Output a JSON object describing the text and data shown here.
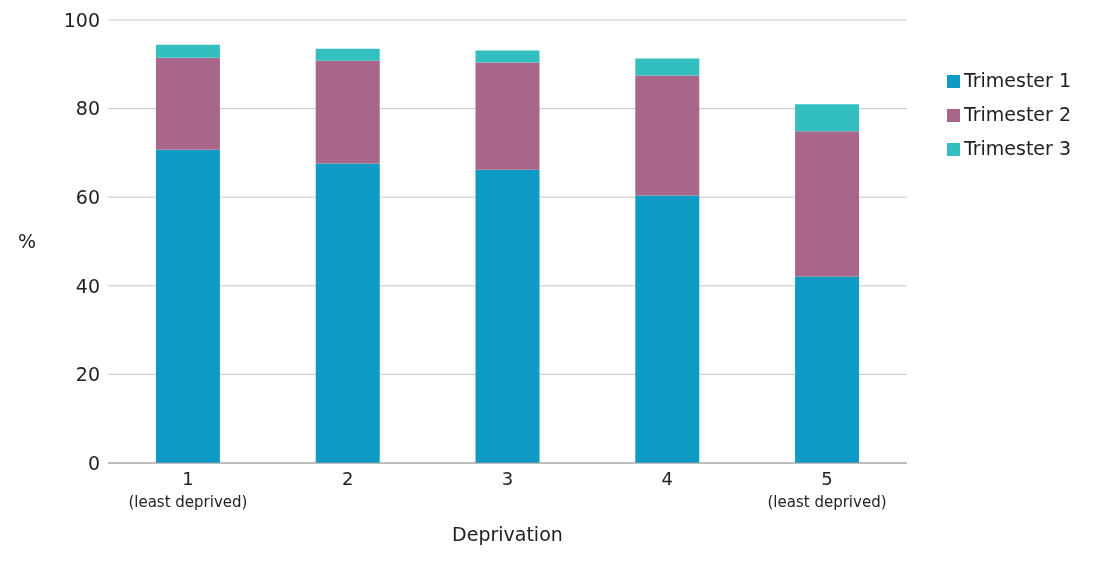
{
  "chart_data": {
    "type": "bar",
    "stacked": true,
    "xlabel": "Deprivation",
    "ylabel": "%",
    "categories": [
      "1\n(least deprived)",
      "2",
      "3",
      "4",
      "5\n(least deprived)"
    ],
    "series": [
      {
        "name": "Trimester 1",
        "color": "#0d9bc6",
        "values": [
          70.7,
          67.6,
          66.2,
          60.4,
          42.1
        ]
      },
      {
        "name": "Trimester 2",
        "color": "#a8668a",
        "values": [
          20.8,
          23.2,
          24.2,
          27.1,
          32.8
        ]
      },
      {
        "name": "Trimester 3",
        "color": "#33bfc0",
        "values": [
          2.9,
          2.7,
          2.7,
          3.8,
          6.1
        ]
      }
    ],
    "ylim": [
      0,
      100
    ],
    "yticks": [
      0,
      20,
      40,
      60,
      80,
      100
    ],
    "grid": "y",
    "legend": "right"
  }
}
